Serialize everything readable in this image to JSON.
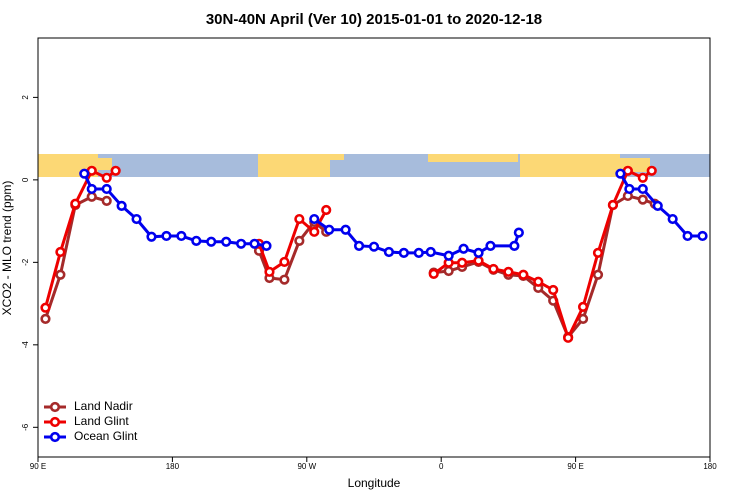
{
  "chart_data": {
    "type": "line",
    "title": "30N-40N April (Ver 10)   2015-01-01 to 2020-12-18",
    "xlabel": "Longitude",
    "ylabel": "XCO2 - MLO trend (ppm)",
    "xlim": [
      90,
      540
    ],
    "ylim": [
      -6.72,
      3.44
    ],
    "xticks": [
      {
        "value": 90,
        "label": "90 E"
      },
      {
        "value": 180,
        "label": "180"
      },
      {
        "value": 270,
        "label": "90 W"
      },
      {
        "value": 360,
        "label": "0"
      },
      {
        "value": 450,
        "label": "90 E"
      },
      {
        "value": 540,
        "label": "180"
      }
    ],
    "yticks": [
      -6,
      -4,
      -2,
      0,
      2
    ],
    "legend": "bottom-left",
    "series": [
      {
        "name": "Land Nadir",
        "color": "#a52a2a",
        "x": [
          95,
          105,
          115,
          126,
          136,
          null,
          238,
          245,
          255,
          265,
          275,
          283,
          null,
          355,
          365,
          374,
          385,
          395,
          405,
          415,
          425,
          435,
          445,
          455,
          465,
          475,
          485,
          495,
          503
        ],
        "values": [
          -3.37,
          -2.3,
          -0.61,
          -0.41,
          -0.51,
          null,
          -1.72,
          -2.38,
          -2.42,
          -1.48,
          -1.02,
          -1.26,
          null,
          -2.25,
          -2.21,
          -2.11,
          -1.99,
          -2.18,
          -2.3,
          -2.33,
          -2.62,
          -2.93,
          -3.81,
          -3.37,
          -2.3,
          -0.61,
          -0.39,
          -0.48,
          -0.58
        ]
      },
      {
        "name": "Land Glint",
        "color": "#ee0000",
        "x": [
          95,
          105,
          115,
          126,
          136,
          142,
          null,
          238,
          245,
          255,
          265,
          275,
          283,
          null,
          355,
          365,
          374,
          385,
          395,
          405,
          415,
          425,
          435,
          445,
          455,
          465,
          475,
          485,
          495,
          501
        ],
        "values": [
          -3.1,
          -1.75,
          -0.58,
          0.22,
          0.05,
          0.22,
          null,
          -1.55,
          -2.23,
          -1.99,
          -0.95,
          -1.26,
          -0.73,
          null,
          -2.28,
          -2.01,
          -2.01,
          -1.96,
          -2.16,
          -2.23,
          -2.3,
          -2.47,
          -2.67,
          -3.83,
          -3.08,
          -1.77,
          -0.61,
          0.22,
          0.05,
          0.22
        ]
      },
      {
        "name": "Ocean Glint",
        "color": "#0000ee",
        "x": [
          121,
          126,
          136,
          146,
          156,
          166,
          176,
          186,
          196,
          206,
          216,
          226,
          235,
          243,
          null,
          275,
          285,
          296,
          305,
          315,
          325,
          335,
          345,
          353,
          365,
          375,
          385,
          393,
          409,
          412,
          null,
          480,
          486,
          495,
          505,
          515,
          525,
          535
        ],
        "values": [
          0.15,
          -0.22,
          -0.22,
          -0.63,
          -0.95,
          -1.38,
          -1.36,
          -1.36,
          -1.48,
          -1.5,
          -1.5,
          -1.55,
          -1.55,
          -1.6,
          null,
          -0.95,
          -1.21,
          -1.21,
          -1.6,
          -1.62,
          -1.75,
          -1.77,
          -1.77,
          -1.75,
          -1.84,
          -1.67,
          -1.77,
          -1.6,
          -1.6,
          -1.28,
          null,
          0.15,
          -0.22,
          -0.22,
          -0.63,
          -0.95,
          -1.36,
          -1.36
        ]
      }
    ]
  }
}
